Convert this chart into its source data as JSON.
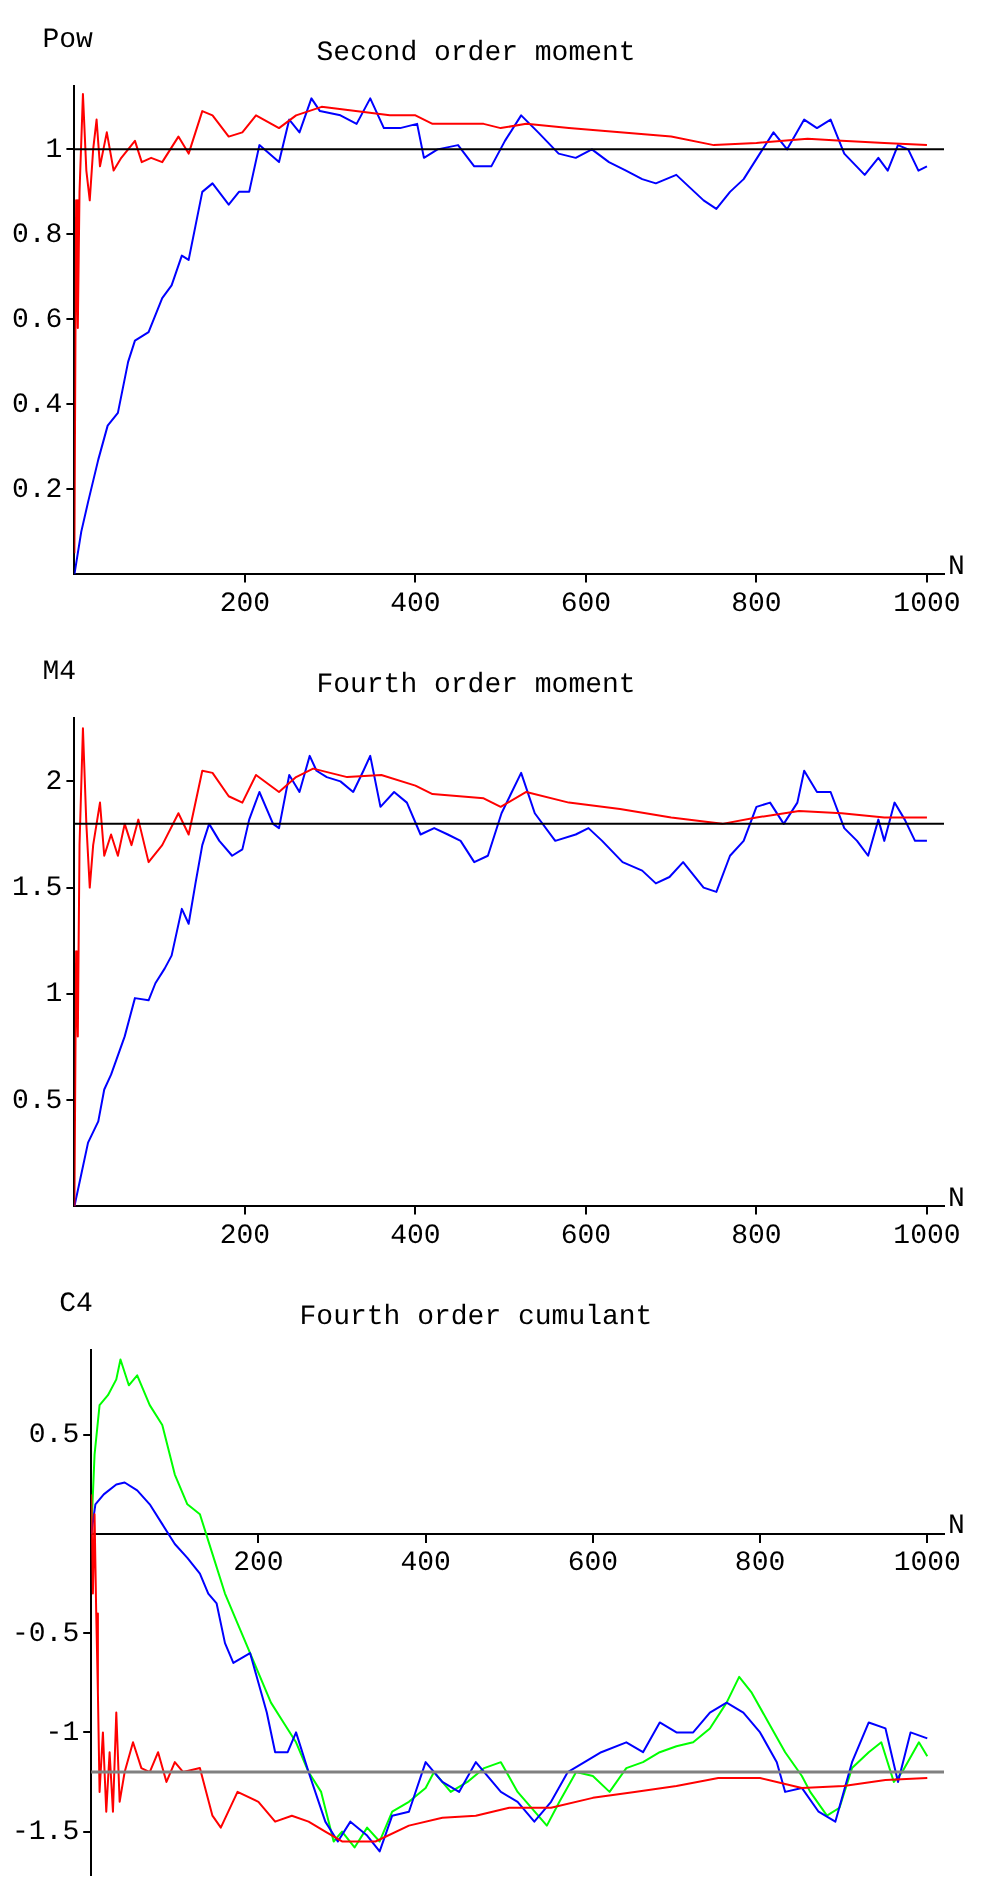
{
  "chart_data": [
    {
      "type": "line",
      "title": "Second order moment",
      "xlabel": "N",
      "ylabel": "Pow",
      "xlim": [
        0,
        1020
      ],
      "ylim": [
        0,
        1.15
      ],
      "xticks": [
        200,
        400,
        600,
        800,
        1000
      ],
      "yticks": [
        0.2,
        0.4,
        0.6,
        0.8,
        1
      ],
      "grid": false,
      "legend": false,
      "ref_lines": [
        {
          "axis": "y",
          "value": 1,
          "color": "#000000"
        }
      ],
      "series": [
        {
          "color": "#ff0000",
          "x": [
            0,
            2,
            4,
            6,
            10,
            14,
            18,
            22,
            26,
            30,
            38,
            46,
            55,
            63,
            71,
            79,
            90,
            103,
            122,
            134,
            150,
            162,
            181,
            197,
            213,
            240,
            260,
            290,
            330,
            370,
            400,
            420,
            480,
            500,
            530,
            580,
            640,
            700,
            750,
            800,
            860,
            900,
            950,
            1000
          ],
          "values": [
            0.05,
            0.88,
            0.58,
            0.9,
            1.13,
            0.95,
            0.88,
            1.0,
            1.07,
            0.96,
            1.04,
            0.95,
            0.98,
            1.0,
            1.02,
            0.97,
            0.98,
            0.97,
            1.03,
            0.99,
            1.09,
            1.08,
            1.03,
            1.04,
            1.08,
            1.05,
            1.08,
            1.1,
            1.09,
            1.08,
            1.08,
            1.06,
            1.06,
            1.05,
            1.06,
            1.05,
            1.04,
            1.03,
            1.01,
            1.015,
            1.025,
            1.02,
            1.015,
            1.01
          ]
        },
        {
          "color": "#0000ff",
          "x": [
            0,
            8,
            16,
            28,
            39,
            51,
            63,
            71,
            87,
            103,
            114,
            126,
            134,
            142,
            150,
            162,
            181,
            193,
            205,
            217,
            240,
            252,
            264,
            278,
            288,
            312,
            331,
            347,
            363,
            382,
            402,
            410,
            426,
            450,
            469,
            489,
            505,
            524,
            544,
            568,
            588,
            607,
            627,
            647,
            666,
            682,
            706,
            722,
            738,
            753,
            769,
            785,
            804,
            820,
            836,
            856,
            871,
            887,
            903,
            927,
            943,
            954,
            966,
            978,
            990,
            1000
          ],
          "values": [
            0,
            0.1,
            0.17,
            0.27,
            0.35,
            0.38,
            0.5,
            0.55,
            0.57,
            0.65,
            0.68,
            0.75,
            0.74,
            0.82,
            0.9,
            0.92,
            0.87,
            0.9,
            0.9,
            1.01,
            0.97,
            1.07,
            1.04,
            1.12,
            1.09,
            1.08,
            1.06,
            1.12,
            1.05,
            1.05,
            1.06,
            0.98,
            1.0,
            1.01,
            0.96,
            0.96,
            1.02,
            1.08,
            1.04,
            0.99,
            0.98,
            1.0,
            0.97,
            0.95,
            0.93,
            0.92,
            0.94,
            0.91,
            0.88,
            0.86,
            0.9,
            0.93,
            0.99,
            1.04,
            1.0,
            1.07,
            1.05,
            1.07,
            0.99,
            0.94,
            0.98,
            0.95,
            1.01,
            1.0,
            0.95,
            0.96
          ]
        }
      ]
    },
    {
      "type": "line",
      "title": "Fourth order moment",
      "xlabel": "N",
      "ylabel": "M4",
      "xlim": [
        0,
        1020
      ],
      "ylim": [
        0,
        2.3
      ],
      "xticks": [
        200,
        400,
        600,
        800,
        1000
      ],
      "yticks": [
        0.5,
        1,
        1.5,
        2
      ],
      "grid": false,
      "legend": false,
      "ref_lines": [
        {
          "axis": "y",
          "value": 1.8,
          "color": "#000000"
        }
      ],
      "series": [
        {
          "color": "#ff0000",
          "x": [
            0,
            2,
            4,
            6,
            10,
            14,
            18,
            22,
            30,
            35,
            43,
            51,
            59,
            67,
            75,
            87,
            103,
            122,
            134,
            150,
            162,
            181,
            197,
            213,
            240,
            260,
            280,
            320,
            360,
            400,
            420,
            480,
            500,
            530,
            580,
            640,
            700,
            760,
            800,
            850,
            900,
            950,
            1000
          ],
          "values": [
            0,
            1.2,
            0.8,
            1.7,
            2.25,
            1.8,
            1.5,
            1.7,
            1.9,
            1.65,
            1.75,
            1.65,
            1.8,
            1.7,
            1.82,
            1.62,
            1.7,
            1.85,
            1.75,
            2.05,
            2.04,
            1.93,
            1.9,
            2.03,
            1.95,
            2.02,
            2.06,
            2.02,
            2.03,
            1.98,
            1.94,
            1.92,
            1.88,
            1.95,
            1.9,
            1.87,
            1.83,
            1.8,
            1.83,
            1.86,
            1.85,
            1.83,
            1.83
          ]
        },
        {
          "color": "#0000ff",
          "x": [
            0,
            8,
            16,
            28,
            35,
            43,
            59,
            71,
            87,
            95,
            106,
            114,
            126,
            134,
            142,
            150,
            158,
            170,
            185,
            197,
            205,
            217,
            233,
            240,
            252,
            264,
            276,
            284,
            296,
            312,
            327,
            339,
            347,
            359,
            375,
            390,
            406,
            422,
            438,
            453,
            469,
            485,
            501,
            524,
            540,
            564,
            588,
            603,
            619,
            643,
            666,
            682,
            698,
            714,
            738,
            753,
            769,
            785,
            800,
            816,
            832,
            848,
            856,
            871,
            887,
            903,
            918,
            931,
            943,
            950,
            962,
            974,
            986,
            1000
          ],
          "values": [
            0,
            0.15,
            0.3,
            0.4,
            0.55,
            0.62,
            0.8,
            0.98,
            0.97,
            1.05,
            1.12,
            1.18,
            1.4,
            1.33,
            1.52,
            1.7,
            1.8,
            1.72,
            1.65,
            1.68,
            1.82,
            1.95,
            1.8,
            1.78,
            2.03,
            1.95,
            2.12,
            2.05,
            2.02,
            2.0,
            1.95,
            2.05,
            2.12,
            1.88,
            1.95,
            1.9,
            1.75,
            1.78,
            1.75,
            1.72,
            1.62,
            1.65,
            1.85,
            2.04,
            1.85,
            1.72,
            1.75,
            1.78,
            1.72,
            1.62,
            1.58,
            1.52,
            1.55,
            1.62,
            1.5,
            1.48,
            1.65,
            1.72,
            1.88,
            1.9,
            1.8,
            1.9,
            2.05,
            1.95,
            1.95,
            1.78,
            1.72,
            1.65,
            1.82,
            1.72,
            1.9,
            1.82,
            1.72,
            1.72
          ]
        }
      ]
    },
    {
      "type": "line",
      "title": "Fourth order cumulant",
      "xlabel": "N",
      "ylabel": "C4",
      "xlim": [
        0,
        1020
      ],
      "ylim": [
        -1.72,
        0.93
      ],
      "xticks": [
        200,
        400,
        600,
        800,
        1000
      ],
      "yticks": [
        -1.5,
        -1,
        -0.5,
        0.5
      ],
      "grid": false,
      "legend": false,
      "ref_lines": [
        {
          "axis": "y",
          "value": -1.2,
          "color": "#808080"
        }
      ],
      "series": [
        {
          "color": "#ff0000",
          "x": [
            0,
            2,
            4,
            6,
            8,
            10,
            14,
            18,
            22,
            26,
            30,
            34,
            40,
            50,
            60,
            70,
            80,
            90,
            100,
            110,
            130,
            145,
            155,
            175,
            200,
            220,
            240,
            260,
            280,
            300,
            340,
            380,
            420,
            460,
            500,
            550,
            600,
            650,
            700,
            750,
            800,
            850,
            900,
            950,
            1000
          ],
          "values": [
            0.2,
            -0.3,
            0.1,
            -0.4,
            -0.8,
            -1.3,
            -1.0,
            -1.4,
            -1.1,
            -1.4,
            -0.9,
            -1.35,
            -1.2,
            -1.05,
            -1.18,
            -1.2,
            -1.1,
            -1.25,
            -1.15,
            -1.2,
            -1.18,
            -1.42,
            -1.48,
            -1.3,
            -1.35,
            -1.45,
            -1.42,
            -1.45,
            -1.5,
            -1.55,
            -1.55,
            -1.47,
            -1.43,
            -1.42,
            -1.38,
            -1.38,
            -1.33,
            -1.3,
            -1.27,
            -1.23,
            -1.23,
            -1.28,
            -1.27,
            -1.24,
            -1.23
          ]
        },
        {
          "color": "#0000ff",
          "x": [
            0,
            5,
            15,
            30,
            40,
            55,
            70,
            85,
            100,
            115,
            130,
            140,
            150,
            160,
            170,
            190,
            200,
            210,
            220,
            235,
            245,
            260,
            280,
            295,
            310,
            330,
            345,
            360,
            380,
            400,
            420,
            440,
            460,
            490,
            510,
            530,
            550,
            570,
            590,
            610,
            640,
            660,
            680,
            700,
            720,
            740,
            760,
            780,
            800,
            820,
            830,
            850,
            870,
            890,
            900,
            910,
            930,
            950,
            965,
            980,
            1000
          ],
          "values": [
            0,
            0.15,
            0.2,
            0.25,
            0.26,
            0.22,
            0.15,
            0.05,
            -0.05,
            -0.12,
            -0.2,
            -0.3,
            -0.35,
            -0.55,
            -0.65,
            -0.6,
            -0.75,
            -0.9,
            -1.1,
            -1.1,
            -1.0,
            -1.2,
            -1.45,
            -1.55,
            -1.45,
            -1.52,
            -1.6,
            -1.42,
            -1.4,
            -1.15,
            -1.25,
            -1.3,
            -1.15,
            -1.3,
            -1.35,
            -1.45,
            -1.35,
            -1.2,
            -1.15,
            -1.1,
            -1.05,
            -1.1,
            -0.95,
            -1.0,
            -1.0,
            -0.9,
            -0.85,
            -0.9,
            -1.0,
            -1.15,
            -1.3,
            -1.28,
            -1.4,
            -1.45,
            -1.3,
            -1.15,
            -0.95,
            -0.98,
            -1.25,
            -1.0,
            -1.03
          ]
        },
        {
          "color": "#00ff00",
          "x": [
            0,
            4,
            10,
            20,
            30,
            35,
            45,
            55,
            70,
            85,
            100,
            115,
            130,
            145,
            160,
            175,
            185,
            200,
            215,
            230,
            245,
            260,
            275,
            290,
            300,
            315,
            330,
            345,
            360,
            380,
            400,
            410,
            430,
            450,
            470,
            490,
            510,
            545,
            560,
            580,
            600,
            620,
            640,
            660,
            680,
            700,
            720,
            740,
            760,
            775,
            790,
            810,
            830,
            850,
            860,
            880,
            895,
            910,
            930,
            945,
            960,
            970,
            990,
            1000
          ],
          "values": [
            0,
            0.4,
            0.65,
            0.7,
            0.78,
            0.88,
            0.75,
            0.8,
            0.65,
            0.55,
            0.3,
            0.15,
            0.1,
            -0.1,
            -0.3,
            -0.45,
            -0.55,
            -0.7,
            -0.85,
            -0.95,
            -1.05,
            -1.2,
            -1.3,
            -1.55,
            -1.5,
            -1.58,
            -1.48,
            -1.55,
            -1.4,
            -1.35,
            -1.28,
            -1.2,
            -1.3,
            -1.25,
            -1.18,
            -1.15,
            -1.3,
            -1.47,
            -1.35,
            -1.2,
            -1.22,
            -1.3,
            -1.18,
            -1.15,
            -1.1,
            -1.07,
            -1.05,
            -0.98,
            -0.85,
            -0.72,
            -0.8,
            -0.95,
            -1.1,
            -1.22,
            -1.3,
            -1.42,
            -1.38,
            -1.18,
            -1.1,
            -1.05,
            -1.25,
            -1.2,
            -1.05,
            -1.12
          ]
        }
      ]
    }
  ]
}
